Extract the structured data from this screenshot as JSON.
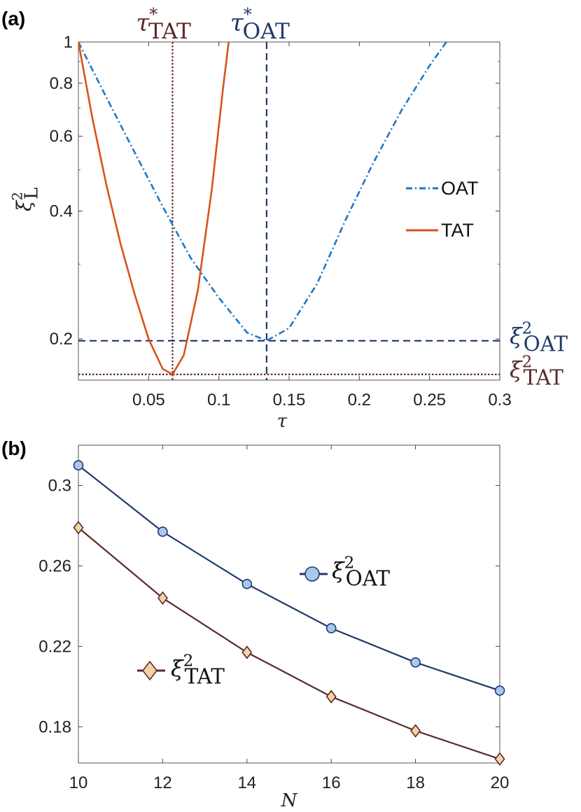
{
  "chart_data": [
    {
      "panel": "(a)",
      "type": "line",
      "xlabel": "τ",
      "ylabel": "ξ",
      "ylabel_sup": "2",
      "ylabel_sub": "L",
      "xlim": [
        0,
        0.3
      ],
      "ylim": [
        0.16,
        1.0
      ],
      "yscale": "log",
      "xticks": [
        0.05,
        0.1,
        0.15,
        0.2,
        0.25,
        0.3
      ],
      "xtick_labels": [
        "0.05",
        "0.1",
        "0.15",
        "0.2",
        "0.25",
        "0.3"
      ],
      "yticks": [
        0.2,
        0.4,
        0.6,
        0.8,
        1.0
      ],
      "ytick_labels": [
        "0.2",
        "0.4",
        "0.6",
        "0.8",
        "1"
      ],
      "legend_position": "right",
      "grid": false,
      "series": [
        {
          "name": "OAT",
          "style": "dash-dot",
          "color": "#1f77c4",
          "x": [
            0,
            0.02,
            0.04,
            0.06,
            0.08,
            0.1,
            0.12,
            0.134,
            0.15,
            0.17,
            0.19,
            0.21,
            0.23,
            0.25,
            0.262
          ],
          "y": [
            1.0,
            0.74,
            0.55,
            0.41,
            0.31,
            0.25,
            0.207,
            0.198,
            0.212,
            0.27,
            0.38,
            0.52,
            0.69,
            0.88,
            1.0
          ]
        },
        {
          "name": "TAT",
          "style": "solid",
          "color": "#d95319",
          "x": [
            0,
            0.01,
            0.02,
            0.03,
            0.04,
            0.05,
            0.06,
            0.067,
            0.075,
            0.085,
            0.095,
            0.103,
            0.107
          ],
          "y": [
            1.0,
            0.66,
            0.46,
            0.335,
            0.255,
            0.2,
            0.17,
            0.165,
            0.183,
            0.26,
            0.45,
            0.78,
            1.0
          ]
        }
      ],
      "reference_lines": [
        {
          "orientation": "vertical",
          "x": 0.067,
          "style": "dotted",
          "color": "#5a2a2a",
          "label": "τ",
          "label_sup": "*",
          "label_sub": "TAT"
        },
        {
          "orientation": "vertical",
          "x": 0.134,
          "style": "dashed",
          "color": "#1f3a68",
          "label": "τ",
          "label_sup": "*",
          "label_sub": "OAT"
        },
        {
          "orientation": "horizontal",
          "y": 0.198,
          "style": "dashed",
          "color": "#1f3a68",
          "label": "ξ",
          "label_sup": "2",
          "label_sub": "OAT"
        },
        {
          "orientation": "horizontal",
          "y": 0.165,
          "style": "dotted",
          "color": "#5a2a2a",
          "label": "ξ",
          "label_sup": "2",
          "label_sub": "TAT"
        }
      ]
    },
    {
      "panel": "(b)",
      "type": "line",
      "xlabel": "N",
      "ylabel": "",
      "xlim": [
        10,
        20
      ],
      "ylim": [
        0.162,
        0.32
      ],
      "xticks": [
        10,
        12,
        14,
        16,
        18,
        20
      ],
      "xtick_labels": [
        "10",
        "12",
        "14",
        "16",
        "18",
        "20"
      ],
      "yticks": [
        0.18,
        0.22,
        0.26,
        0.3
      ],
      "ytick_labels": [
        "0.18",
        "0.22",
        "0.26",
        "0.3"
      ],
      "grid": false,
      "legend_position": "inside (series labels placed near curves)",
      "series": [
        {
          "name": "ξ",
          "name_sup": "2",
          "name_sub": "OAT",
          "marker": "circle",
          "line_color": "#1f3a68",
          "marker_fill": "#a9c8ef",
          "x": [
            10,
            12,
            14,
            16,
            18,
            20
          ],
          "y": [
            0.31,
            0.277,
            0.251,
            0.229,
            0.212,
            0.198
          ]
        },
        {
          "name": "ξ",
          "name_sup": "2",
          "name_sub": "TAT",
          "marker": "diamond",
          "line_color": "#5a2a2a",
          "marker_fill": "#f5d2a6",
          "x": [
            10,
            12,
            14,
            16,
            18,
            20
          ],
          "y": [
            0.279,
            0.244,
            0.217,
            0.195,
            0.178,
            0.164
          ]
        }
      ]
    }
  ]
}
